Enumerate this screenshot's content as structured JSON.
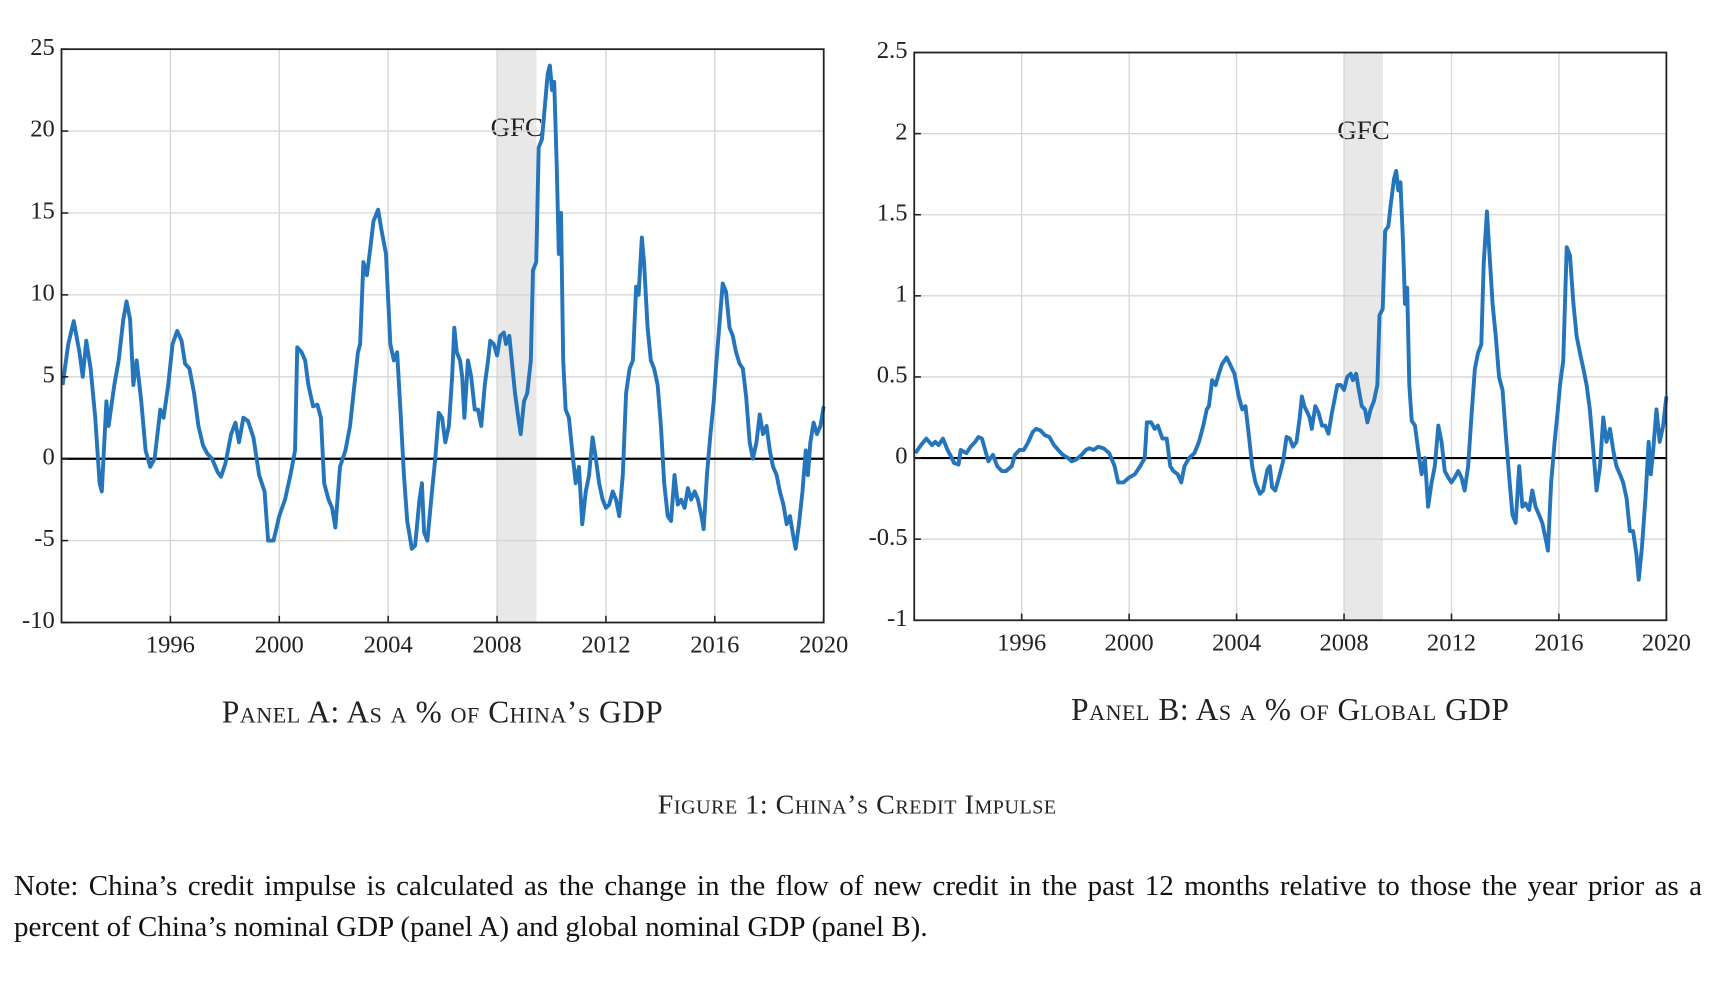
{
  "chart_data": [
    {
      "type": "line",
      "title": "Panel A: As a % of China’s GDP",
      "color": "#2475bb",
      "xlim": [
        1992,
        2020
      ],
      "xticks": [
        1996,
        2000,
        2004,
        2008,
        2012,
        2016,
        2020
      ],
      "ylim": [
        -10,
        25
      ],
      "yticks": [
        -10,
        -5,
        0,
        5,
        10,
        15,
        20,
        25
      ],
      "grid": true,
      "reference_line": 0,
      "shade": {
        "label": "GFC",
        "x": [
          2008,
          2009.45
        ]
      },
      "x": [
        1992.04,
        1992.25,
        1992.45,
        1992.66,
        1992.78,
        1992.91,
        1993.07,
        1993.24,
        1993.4,
        1993.48,
        1993.65,
        1993.73,
        1993.94,
        1994.1,
        1994.27,
        1994.39,
        1994.52,
        1994.64,
        1994.76,
        1994.93,
        1995.09,
        1995.26,
        1995.42,
        1995.63,
        1995.75,
        1995.92,
        1996.08,
        1996.25,
        1996.41,
        1996.54,
        1996.7,
        1996.87,
        1997.03,
        1997.2,
        1997.36,
        1997.53,
        1997.73,
        1997.86,
        1998.02,
        1998.23,
        1998.39,
        1998.52,
        1998.68,
        1998.85,
        1999.05,
        1999.26,
        1999.46,
        1999.59,
        1999.79,
        2000.0,
        2000.21,
        2000.41,
        2000.58,
        2000.66,
        2000.82,
        2000.95,
        2001.07,
        2001.24,
        2001.4,
        2001.53,
        2001.65,
        2001.81,
        2001.94,
        2002.06,
        2002.23,
        2002.43,
        2002.6,
        2002.76,
        2002.89,
        2002.97,
        2003.09,
        2003.22,
        2003.34,
        2003.46,
        2003.63,
        2003.75,
        2003.92,
        2004.08,
        2004.21,
        2004.33,
        2004.45,
        2004.58,
        2004.7,
        2004.87,
        2004.99,
        2005.15,
        2005.24,
        2005.32,
        2005.44,
        2005.61,
        2005.73,
        2005.86,
        2005.98,
        2006.1,
        2006.23,
        2006.35,
        2006.43,
        2006.52,
        2006.64,
        2006.72,
        2006.8,
        2006.93,
        2007.05,
        2007.18,
        2007.3,
        2007.42,
        2007.55,
        2007.67,
        2007.75,
        2007.88,
        2008.0,
        2008.12,
        2008.25,
        2008.33,
        2008.45,
        2008.54,
        2008.66,
        2008.78,
        2008.87,
        2008.99,
        2009.11,
        2009.24,
        2009.32,
        2009.44,
        2009.53,
        2009.65,
        2009.73,
        2009.86,
        2009.94,
        2010.02,
        2010.1,
        2010.19,
        2010.27,
        2010.35,
        2010.43,
        2010.52,
        2010.64,
        2010.76,
        2010.89,
        2011.01,
        2011.13,
        2011.26,
        2011.38,
        2011.51,
        2011.63,
        2011.75,
        2011.88,
        2012.0,
        2012.12,
        2012.25,
        2012.37,
        2012.49,
        2012.62,
        2012.74,
        2012.87,
        2012.99,
        2013.11,
        2013.2,
        2013.32,
        2013.4,
        2013.53,
        2013.65,
        2013.77,
        2013.9,
        2014.02,
        2014.14,
        2014.27,
        2014.39,
        2014.52,
        2014.64,
        2014.76,
        2014.89,
        2015.01,
        2015.13,
        2015.26,
        2015.38,
        2015.51,
        2015.59,
        2015.71,
        2015.84,
        2015.96,
        2016.04,
        2016.16,
        2016.29,
        2016.41,
        2016.54,
        2016.66,
        2016.78,
        2016.91,
        2017.03,
        2017.15,
        2017.28,
        2017.4,
        2017.53,
        2017.65,
        2017.77,
        2017.9,
        2018.02,
        2018.14,
        2018.27,
        2018.39,
        2018.52,
        2018.64,
        2018.76,
        2018.89,
        2018.97,
        2019.09,
        2019.22,
        2019.34,
        2019.42,
        2019.51,
        2019.63,
        2019.75,
        2019.88,
        2020.0
      ],
      "values": [
        4.5,
        7,
        8.4,
        6.5,
        5,
        7.2,
        5.5,
        2.5,
        -1.5,
        -2,
        3.5,
        2,
        4.5,
        6,
        8.5,
        9.6,
        8.5,
        4.5,
        6,
        3.5,
        0.5,
        -0.5,
        0,
        3,
        2.5,
        4.5,
        7,
        7.8,
        7.2,
        5.8,
        5.5,
        4,
        2,
        0.8,
        0.3,
        0,
        -0.8,
        -1.1,
        -0.3,
        1.5,
        2.2,
        1,
        2.5,
        2.3,
        1.3,
        -1,
        -2,
        -5,
        -5,
        -3.5,
        -2.5,
        -1,
        0.5,
        6.8,
        6.5,
        6,
        4.5,
        3.2,
        3.3,
        2.5,
        -1.5,
        -2.5,
        -3,
        -4.2,
        -0.5,
        0.5,
        2,
        4.5,
        6.5,
        7,
        12,
        11.2,
        12.8,
        14.5,
        15.2,
        14,
        12.5,
        7,
        6,
        6.5,
        3,
        -1,
        -3.8,
        -5.5,
        -5.3,
        -2.5,
        -1.5,
        -4.5,
        -5,
        -2,
        0,
        2.8,
        2.5,
        1,
        2,
        5,
        8,
        6.5,
        6,
        5,
        2.5,
        6,
        5,
        3,
        3,
        2,
        4.5,
        6,
        7.2,
        7,
        6.3,
        7.5,
        7.7,
        7,
        7.5,
        6,
        4,
        2.5,
        1.5,
        3.5,
        4,
        6,
        11.5,
        12,
        19,
        19.5,
        21,
        23.5,
        24,
        22.5,
        23,
        18,
        12.5,
        15,
        6,
        3,
        2.5,
        0.5,
        -1.5,
        -0.5,
        -4,
        -2,
        -1,
        1.3,
        0,
        -1.5,
        -2.5,
        -3,
        -2.8,
        -2,
        -2.5,
        -3.5,
        -1,
        4,
        5.5,
        6,
        10.5,
        10,
        13.5,
        12,
        8,
        6,
        5.5,
        4.5,
        2,
        -1.5,
        -3.5,
        -3.8,
        -1,
        -2.8,
        -2.5,
        -3,
        -1.8,
        -2.5,
        -2,
        -2.5,
        -3.5,
        -4.3,
        -1,
        1.5,
        3.5,
        5.5,
        8,
        10.7,
        10.2,
        8,
        7.5,
        6.5,
        5.8,
        5.5,
        3.8,
        1,
        0,
        1,
        2.7,
        1.5,
        2,
        0.5,
        -0.5,
        -1,
        -2,
        -2.8,
        -4,
        -3.5,
        -4.8,
        -5.5,
        -4,
        -2,
        0.5,
        -1,
        1,
        2.2,
        1.5,
        2,
        3.2
      ]
    },
    {
      "type": "line",
      "title": "Panel B: As a % of Global GDP",
      "color": "#2475bb",
      "xlim": [
        1992,
        2020
      ],
      "xticks": [
        1996,
        2000,
        2004,
        2008,
        2012,
        2016,
        2020
      ],
      "ylim": [
        -1,
        2.5
      ],
      "yticks": [
        -1,
        -0.5,
        0,
        0.5,
        1,
        1.5,
        2,
        2.5
      ],
      "grid": true,
      "reference_line": 0,
      "shade": {
        "label": "GFC",
        "x": [
          2008,
          2009.45
        ]
      },
      "x": [
        1992.04,
        1992.25,
        1992.45,
        1992.66,
        1992.78,
        1992.91,
        1993.07,
        1993.24,
        1993.4,
        1993.48,
        1993.65,
        1993.73,
        1993.94,
        1994.1,
        1994.27,
        1994.39,
        1994.52,
        1994.64,
        1994.76,
        1994.93,
        1995.09,
        1995.26,
        1995.42,
        1995.63,
        1995.75,
        1995.92,
        1996.08,
        1996.25,
        1996.41,
        1996.54,
        1996.7,
        1996.87,
        1997.03,
        1997.2,
        1997.36,
        1997.53,
        1997.73,
        1997.86,
        1998.02,
        1998.23,
        1998.39,
        1998.52,
        1998.68,
        1998.85,
        1999.05,
        1999.26,
        1999.46,
        1999.59,
        1999.79,
        2000.0,
        2000.21,
        2000.41,
        2000.58,
        2000.66,
        2000.82,
        2000.95,
        2001.07,
        2001.24,
        2001.4,
        2001.53,
        2001.65,
        2001.81,
        2001.94,
        2002.06,
        2002.23,
        2002.43,
        2002.6,
        2002.76,
        2002.89,
        2002.97,
        2003.09,
        2003.22,
        2003.34,
        2003.46,
        2003.63,
        2003.75,
        2003.92,
        2004.08,
        2004.21,
        2004.33,
        2004.45,
        2004.58,
        2004.7,
        2004.87,
        2004.99,
        2005.15,
        2005.24,
        2005.32,
        2005.44,
        2005.61,
        2005.73,
        2005.86,
        2005.98,
        2006.1,
        2006.23,
        2006.35,
        2006.43,
        2006.52,
        2006.64,
        2006.72,
        2006.8,
        2006.93,
        2007.05,
        2007.18,
        2007.3,
        2007.42,
        2007.55,
        2007.67,
        2007.75,
        2007.88,
        2008.0,
        2008.12,
        2008.25,
        2008.33,
        2008.45,
        2008.54,
        2008.66,
        2008.78,
        2008.87,
        2008.99,
        2009.11,
        2009.24,
        2009.32,
        2009.44,
        2009.53,
        2009.65,
        2009.73,
        2009.86,
        2009.94,
        2010.02,
        2010.1,
        2010.19,
        2010.27,
        2010.35,
        2010.43,
        2010.52,
        2010.64,
        2010.76,
        2010.89,
        2011.01,
        2011.13,
        2011.26,
        2011.38,
        2011.51,
        2011.63,
        2011.75,
        2011.88,
        2012.0,
        2012.12,
        2012.25,
        2012.37,
        2012.49,
        2012.62,
        2012.74,
        2012.87,
        2012.99,
        2013.11,
        2013.2,
        2013.32,
        2013.4,
        2013.53,
        2013.65,
        2013.77,
        2013.9,
        2014.02,
        2014.14,
        2014.27,
        2014.39,
        2014.52,
        2014.64,
        2014.76,
        2014.89,
        2015.01,
        2015.13,
        2015.26,
        2015.38,
        2015.51,
        2015.59,
        2015.71,
        2015.84,
        2015.96,
        2016.04,
        2016.16,
        2016.29,
        2016.41,
        2016.54,
        2016.66,
        2016.78,
        2016.91,
        2017.03,
        2017.15,
        2017.28,
        2017.4,
        2017.53,
        2017.65,
        2017.77,
        2017.9,
        2018.02,
        2018.14,
        2018.27,
        2018.39,
        2018.52,
        2018.64,
        2018.76,
        2018.89,
        2018.97,
        2019.09,
        2019.22,
        2019.34,
        2019.42,
        2019.51,
        2019.63,
        2019.75,
        2019.88,
        2020.0
      ],
      "values": [
        0.03,
        0.08,
        0.12,
        0.08,
        0.1,
        0.08,
        0.12,
        0.05,
        0,
        -0.03,
        -0.04,
        0.05,
        0.03,
        0.07,
        0.1,
        0.13,
        0.12,
        0.05,
        -0.02,
        0.02,
        -0.05,
        -0.08,
        -0.08,
        -0.05,
        0.02,
        0.05,
        0.05,
        0.1,
        0.16,
        0.18,
        0.17,
        0.14,
        0.13,
        0.08,
        0.05,
        0.02,
        0,
        -0.02,
        -0.01,
        0.02,
        0.05,
        0.06,
        0.05,
        0.07,
        0.06,
        0.03,
        -0.05,
        -0.15,
        -0.15,
        -0.12,
        -0.1,
        -0.05,
        0,
        0.22,
        0.22,
        0.18,
        0.2,
        0.12,
        0.12,
        -0.05,
        -0.08,
        -0.1,
        -0.15,
        -0.05,
        0,
        0.03,
        0.1,
        0.2,
        0.3,
        0.32,
        0.48,
        0.45,
        0.52,
        0.58,
        0.62,
        0.58,
        0.52,
        0.38,
        0.3,
        0.32,
        0.15,
        -0.05,
        -0.15,
        -0.22,
        -0.2,
        -0.07,
        -0.05,
        -0.18,
        -0.2,
        -0.1,
        -0.02,
        0.13,
        0.12,
        0.07,
        0.1,
        0.25,
        0.38,
        0.32,
        0.28,
        0.25,
        0.18,
        0.32,
        0.28,
        0.2,
        0.2,
        0.15,
        0.28,
        0.38,
        0.45,
        0.45,
        0.42,
        0.5,
        0.52,
        0.48,
        0.52,
        0.43,
        0.32,
        0.3,
        0.22,
        0.3,
        0.35,
        0.45,
        0.88,
        0.92,
        1.4,
        1.43,
        1.55,
        1.72,
        1.77,
        1.65,
        1.7,
        1.35,
        0.95,
        1.05,
        0.45,
        0.23,
        0.2,
        0.05,
        -0.1,
        0,
        -0.3,
        -0.15,
        -0.05,
        0.2,
        0.1,
        -0.08,
        -0.12,
        -0.15,
        -0.12,
        -0.08,
        -0.12,
        -0.2,
        -0.05,
        0.25,
        0.55,
        0.65,
        0.7,
        1.2,
        1.52,
        1.3,
        0.95,
        0.75,
        0.5,
        0.42,
        0.15,
        -0.1,
        -0.35,
        -0.4,
        -0.05,
        -0.3,
        -0.28,
        -0.32,
        -0.2,
        -0.3,
        -0.35,
        -0.4,
        -0.5,
        -0.57,
        -0.15,
        0.1,
        0.3,
        0.45,
        0.6,
        1.3,
        1.25,
        0.95,
        0.75,
        0.65,
        0.55,
        0.45,
        0.3,
        0.05,
        -0.2,
        -0.05,
        0.25,
        0.1,
        0.18,
        0.05,
        -0.05,
        -0.1,
        -0.15,
        -0.25,
        -0.45,
        -0.45,
        -0.6,
        -0.75,
        -0.55,
        -0.25,
        0.1,
        -0.1,
        0.05,
        0.3,
        0.1,
        0.2,
        0.38
      ]
    }
  ],
  "figure_caption": "Figure 1: China’s Credit Impulse",
  "note": "Note: China’s credit impulse is calculated as the change in the flow of new credit in the past 12 months relative to those the year prior as a percent of China’s nominal GDP (panel A) and global nominal GDP (panel B)."
}
